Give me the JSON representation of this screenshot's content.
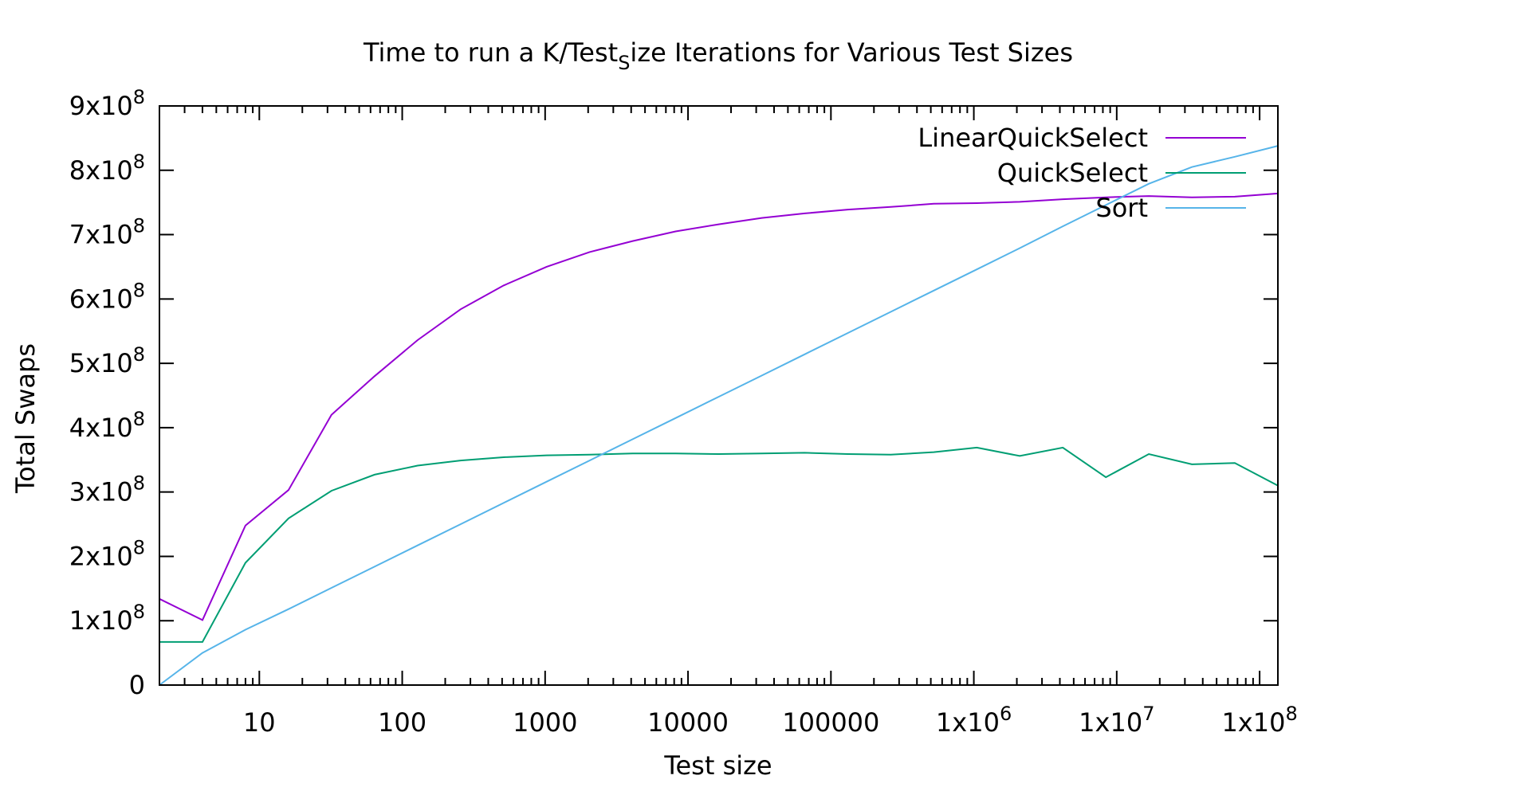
{
  "chart_data": {
    "type": "line",
    "title": "Time to run a K/Test",
    "title_sub": "S",
    "title_rest": "ize Iterations for Various Test Sizes",
    "xlabel": "Test size",
    "ylabel": "Total Swaps",
    "x_scale": "log2 (tick labels in powers of ten)",
    "xlim": [
      2,
      134217728
    ],
    "ylim": [
      0,
      900000000
    ],
    "grid": false,
    "legend_position": "top-right",
    "x_ticks": [
      {
        "value": 10,
        "label": "10"
      },
      {
        "value": 100,
        "label": "100"
      },
      {
        "value": 1000,
        "label": "1000"
      },
      {
        "value": 10000,
        "label": "10000"
      },
      {
        "value": 100000,
        "label": "100000"
      },
      {
        "value": 1000000,
        "label": "1x10",
        "exp": "6"
      },
      {
        "value": 10000000,
        "label": "1x10",
        "exp": "7"
      },
      {
        "value": 100000000,
        "label": "1x10",
        "exp": "8"
      }
    ],
    "y_ticks": [
      {
        "value": 0,
        "label": "0",
        "exp": ""
      },
      {
        "value": 100000000,
        "label": "1x10",
        "exp": "8"
      },
      {
        "value": 200000000,
        "label": "2x10",
        "exp": "8"
      },
      {
        "value": 300000000,
        "label": "3x10",
        "exp": "8"
      },
      {
        "value": 400000000,
        "label": "4x10",
        "exp": "8"
      },
      {
        "value": 500000000,
        "label": "5x10",
        "exp": "8"
      },
      {
        "value": 600000000,
        "label": "6x10",
        "exp": "8"
      },
      {
        "value": 700000000,
        "label": "7x10",
        "exp": "8"
      },
      {
        "value": 800000000,
        "label": "8x10",
        "exp": "8"
      },
      {
        "value": 900000000,
        "label": "9x10",
        "exp": "8"
      }
    ],
    "x": [
      2,
      4,
      8,
      16,
      32,
      64,
      128,
      256,
      512,
      1024,
      2048,
      4096,
      8192,
      16384,
      32768,
      65536,
      131072,
      262144,
      524288,
      1048576,
      2097152,
      4194304,
      8388608,
      16777216,
      33554432,
      67108864,
      134217728
    ],
    "series": [
      {
        "name": "LinearQuickSelect",
        "color": "#9400d3",
        "values": [
          134000000,
          101000000,
          248000000,
          303000000,
          420000000,
          480000000,
          536000000,
          584000000,
          621000000,
          650000000,
          673000000,
          690000000,
          705000000,
          716000000,
          726000000,
          733000000,
          739000000,
          743000000,
          748000000,
          749000000,
          751000000,
          755000000,
          758000000,
          760000000,
          758000000,
          759000000,
          764000000
        ]
      },
      {
        "name": "QuickSelect",
        "color": "#009e73",
        "values": [
          67000000,
          67000000,
          190000000,
          259000000,
          302000000,
          327000000,
          341000000,
          349000000,
          354000000,
          357000000,
          358000000,
          360000000,
          360000000,
          359000000,
          360000000,
          361000000,
          359000000,
          358000000,
          362000000,
          369000000,
          356000000,
          369000000,
          323000000,
          359000000,
          343000000,
          345000000,
          310000000
        ]
      },
      {
        "name": "Sort",
        "color": "#56b4e9",
        "values": [
          0,
          50000000,
          86000000,
          118000000,
          151000000,
          184000000,
          217000000,
          250000000,
          283000000,
          316000000,
          349000000,
          382000000,
          415000000,
          448000000,
          481000000,
          514000000,
          547000000,
          580000000,
          613000000,
          646000000,
          679000000,
          713000000,
          746000000,
          779000000,
          805000000,
          821000000,
          838000000
        ]
      }
    ]
  }
}
